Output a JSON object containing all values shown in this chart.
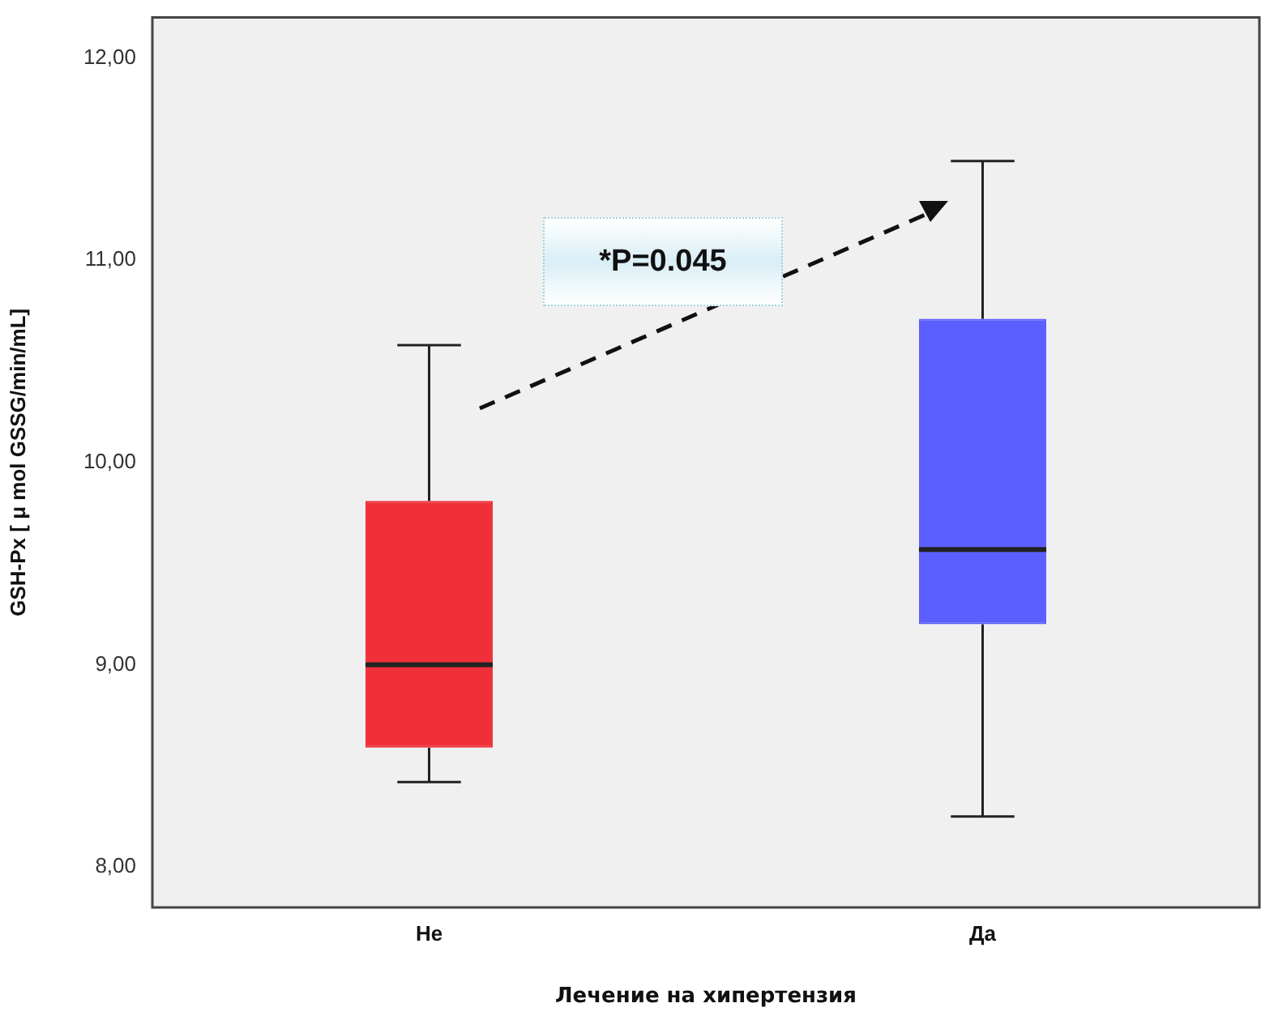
{
  "chart_data": {
    "type": "box",
    "xlabel": "Лечение на хипертензия",
    "ylabel": "GSH-Px [ μ mol GSSG/min/mL]",
    "categories": [
      "Не",
      "Да"
    ],
    "boxes": [
      {
        "low": 8.42,
        "q1": 8.59,
        "median": 9.0,
        "q3": 9.81,
        "high": 10.58
      },
      {
        "low": 8.25,
        "q1": 9.2,
        "median": 9.57,
        "q3": 10.71,
        "high": 11.49
      }
    ],
    "colors": [
      "#ef3038",
      "#5b5ffe"
    ],
    "ylim": [
      7.8,
      12.2
    ],
    "yticks": [
      {
        "value": 8,
        "label": "8,00"
      },
      {
        "value": 9,
        "label": "9,00"
      },
      {
        "value": 10,
        "label": "10,00"
      },
      {
        "value": 11,
        "label": "11,00"
      },
      {
        "value": 12,
        "label": "12,00"
      }
    ],
    "grid": false,
    "legend": false,
    "annotations": [
      "*P=0.045"
    ]
  }
}
